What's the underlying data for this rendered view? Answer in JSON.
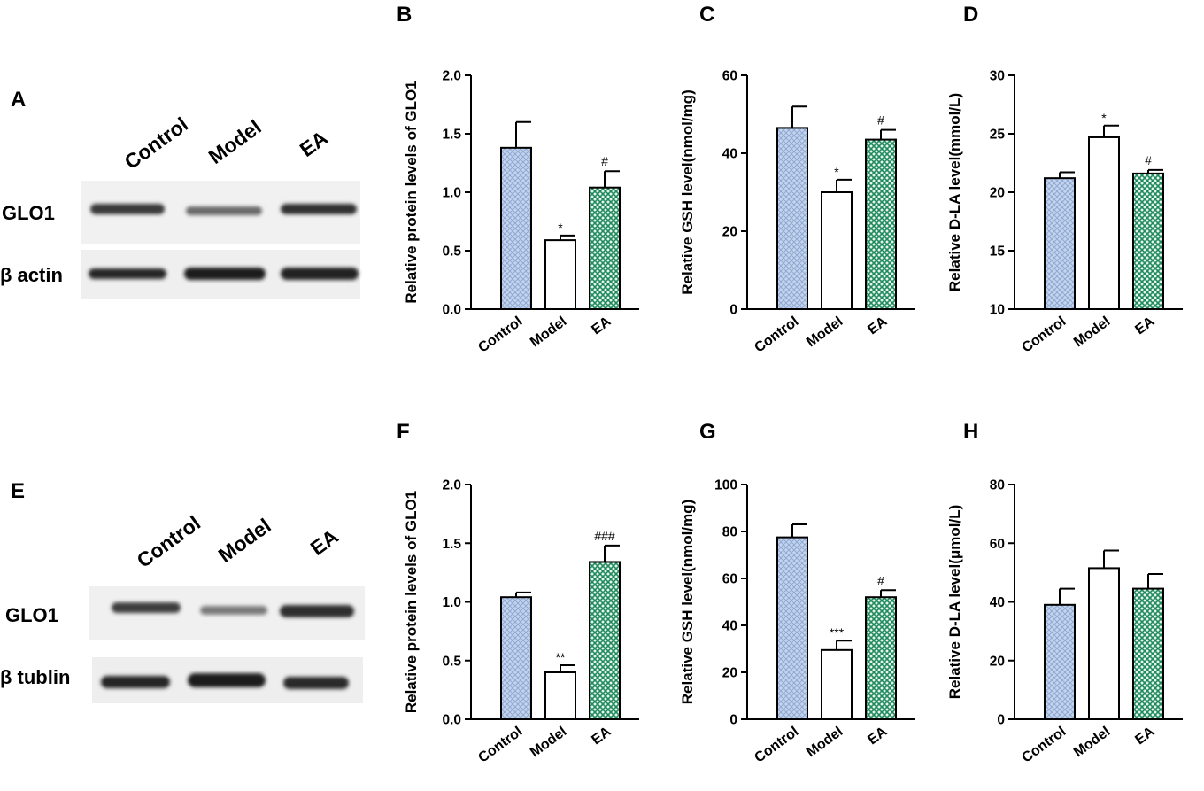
{
  "panels": {
    "A": "A",
    "E": "E"
  },
  "blot_A": {
    "lanes": [
      "Control",
      "Model",
      "EA"
    ],
    "rows": [
      "GLO1",
      "β actin"
    ]
  },
  "blot_E": {
    "lanes": [
      "Control",
      "Model",
      "EA"
    ],
    "rows": [
      "GLO1",
      "β tublin"
    ]
  },
  "colors": {
    "control": "#b7c9e6",
    "model": "#ffffff",
    "ea": "#1f8a5e"
  },
  "chart_data": [
    {
      "panel": "B",
      "type": "bar",
      "categories": [
        "Control",
        "Model",
        "EA"
      ],
      "values": [
        1.38,
        0.59,
        1.04
      ],
      "errors": [
        0.22,
        0.04,
        0.14
      ],
      "annotations": [
        "",
        "*",
        "#"
      ],
      "ylabel": "Relative protein levels of GLO1",
      "ylim": [
        0,
        2.0
      ],
      "yticks": [
        "0.0",
        "0.5",
        "1.0",
        "1.5",
        "2.0"
      ]
    },
    {
      "panel": "C",
      "type": "bar",
      "categories": [
        "Control",
        "Model",
        "EA"
      ],
      "values": [
        46.5,
        30.0,
        43.5
      ],
      "errors": [
        5.5,
        3.2,
        2.5
      ],
      "annotations": [
        "",
        "*",
        "#"
      ],
      "ylabel": "Relative GSH level(nmol/mg)",
      "ylim": [
        0,
        60
      ],
      "yticks": [
        "0",
        "20",
        "40",
        "60"
      ]
    },
    {
      "panel": "D",
      "type": "bar",
      "categories": [
        "Control",
        "Model",
        "EA"
      ],
      "values": [
        21.2,
        24.7,
        21.6
      ],
      "errors": [
        0.5,
        1.0,
        0.3
      ],
      "annotations": [
        "",
        "*",
        "#"
      ],
      "ylabel": "Relative D-LA level(mmol/L)",
      "ylim": [
        10,
        30
      ],
      "yticks": [
        "10",
        "15",
        "20",
        "25",
        "30"
      ]
    },
    {
      "panel": "F",
      "type": "bar",
      "categories": [
        "Control",
        "Model",
        "EA"
      ],
      "values": [
        1.04,
        0.4,
        1.34
      ],
      "errors": [
        0.04,
        0.06,
        0.14
      ],
      "annotations": [
        "",
        "**",
        "###"
      ],
      "ylabel": "Relative protein levels of GLO1",
      "ylim": [
        0,
        2.0
      ],
      "yticks": [
        "0.0",
        "0.5",
        "1.0",
        "1.5",
        "2.0"
      ]
    },
    {
      "panel": "G",
      "type": "bar",
      "categories": [
        "Control",
        "Model",
        "EA"
      ],
      "values": [
        77.5,
        29.5,
        52.0
      ],
      "errors": [
        5.5,
        4.0,
        3.0
      ],
      "annotations": [
        "",
        "***",
        "#"
      ],
      "ylabel": "Relative GSH level(nmol/mg)",
      "ylim": [
        0,
        100
      ],
      "yticks": [
        "0",
        "20",
        "40",
        "60",
        "80",
        "100"
      ]
    },
    {
      "panel": "H",
      "type": "bar",
      "categories": [
        "Control",
        "Model",
        "EA"
      ],
      "values": [
        39.0,
        51.5,
        44.5
      ],
      "errors": [
        5.5,
        6.0,
        5.0
      ],
      "annotations": [
        "",
        "",
        ""
      ],
      "ylabel": "Relative D-LA level(μmol/L)",
      "ylim": [
        0,
        80
      ],
      "yticks": [
        "0",
        "20",
        "40",
        "60",
        "80"
      ]
    }
  ]
}
